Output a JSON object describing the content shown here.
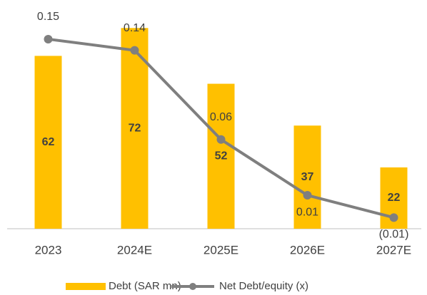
{
  "chart_data": {
    "type": "bar+line",
    "categories": [
      "2023",
      "2024E",
      "2025E",
      "2026E",
      "2027E"
    ],
    "series": [
      {
        "name": "Debt (SAR mn)",
        "type": "bar",
        "color": "#ffc000",
        "values": [
          62,
          72,
          52,
          37,
          22
        ]
      },
      {
        "name": "Net Debt/equity (x)",
        "type": "line",
        "axis": "y2",
        "color": "#7f7f7f",
        "values": [
          0.15,
          0.14,
          0.06,
          0.01,
          -0.01
        ],
        "value_labels": [
          "0.15",
          "0.14",
          "0.06",
          "0.01",
          "(0.01)"
        ]
      }
    ],
    "ylim": [
      0,
      80
    ],
    "y2lim": [
      -0.02,
      0.18
    ],
    "legend": "bottom"
  }
}
